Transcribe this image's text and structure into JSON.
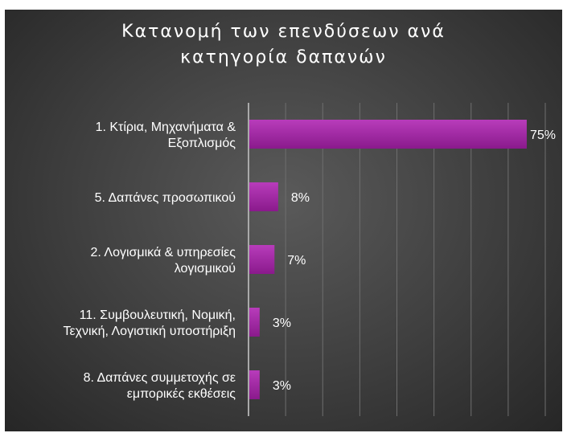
{
  "chart_data": {
    "type": "bar",
    "orientation": "horizontal",
    "title_lines": [
      "Κατανομή των επενδύσεων ανά",
      "κατηγορία δαπανών"
    ],
    "categories": [
      [
        "1. Κτίρια, Μηχανήματα &",
        "Εξοπλισμός"
      ],
      [
        "5. Δαπάνες προσωπικού"
      ],
      [
        "2. Λογισμικά & υπηρεσίες",
        "λογισμικού"
      ],
      [
        "11. Συμβουλευτική, Νομική,",
        "Τεχνική, Λογιστική υποστήριξη"
      ],
      [
        "8. Δαπάνες συμμετοχής σε",
        "εμπορικές εκθέσεις"
      ]
    ],
    "values": [
      75,
      8,
      7,
      3,
      3
    ],
    "value_labels": [
      "75%",
      "8%",
      "7%",
      "3%",
      "3%"
    ],
    "xlim": [
      0,
      80
    ],
    "grid": true,
    "legend": "none",
    "colors": {
      "bar": "#9b1f9c",
      "bar_light": "#b33ab5",
      "grid": "#6e6e6e",
      "axis": "#a9a9a9",
      "background": "#3e3e3e"
    }
  }
}
